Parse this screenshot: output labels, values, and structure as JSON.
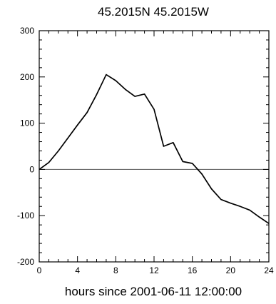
{
  "chart_data": {
    "type": "line",
    "title": "45.2015N  45.2015W",
    "xlabel": "hours since 2001-06-11 12:00:00",
    "ylabel": "",
    "xlim": [
      0,
      24
    ],
    "ylim": [
      -200,
      300
    ],
    "xticks": [
      0,
      4,
      8,
      12,
      16,
      20,
      24
    ],
    "yticks": [
      -200,
      -100,
      0,
      100,
      200,
      300
    ],
    "xtick_labels": [
      "0",
      "4",
      "8",
      "12",
      "16",
      "20",
      "24"
    ],
    "ytick_labels": [
      "-200",
      "-100",
      "0",
      "100",
      "200",
      "300"
    ],
    "reference_line": 0,
    "grid": false,
    "series": [
      {
        "x": [
          0,
          1,
          2,
          3,
          4,
          5,
          6,
          7,
          8,
          9,
          10,
          11,
          12,
          13,
          14,
          15,
          16,
          17,
          18,
          19,
          20,
          21,
          22,
          23,
          24
        ],
        "y": [
          0,
          15,
          40,
          68,
          96,
          123,
          162,
          205,
          192,
          173,
          158,
          163,
          130,
          50,
          58,
          17,
          13,
          -10,
          -42,
          -65,
          -73,
          -80,
          -88,
          -103,
          -117
        ],
        "color": "#000000"
      }
    ]
  }
}
